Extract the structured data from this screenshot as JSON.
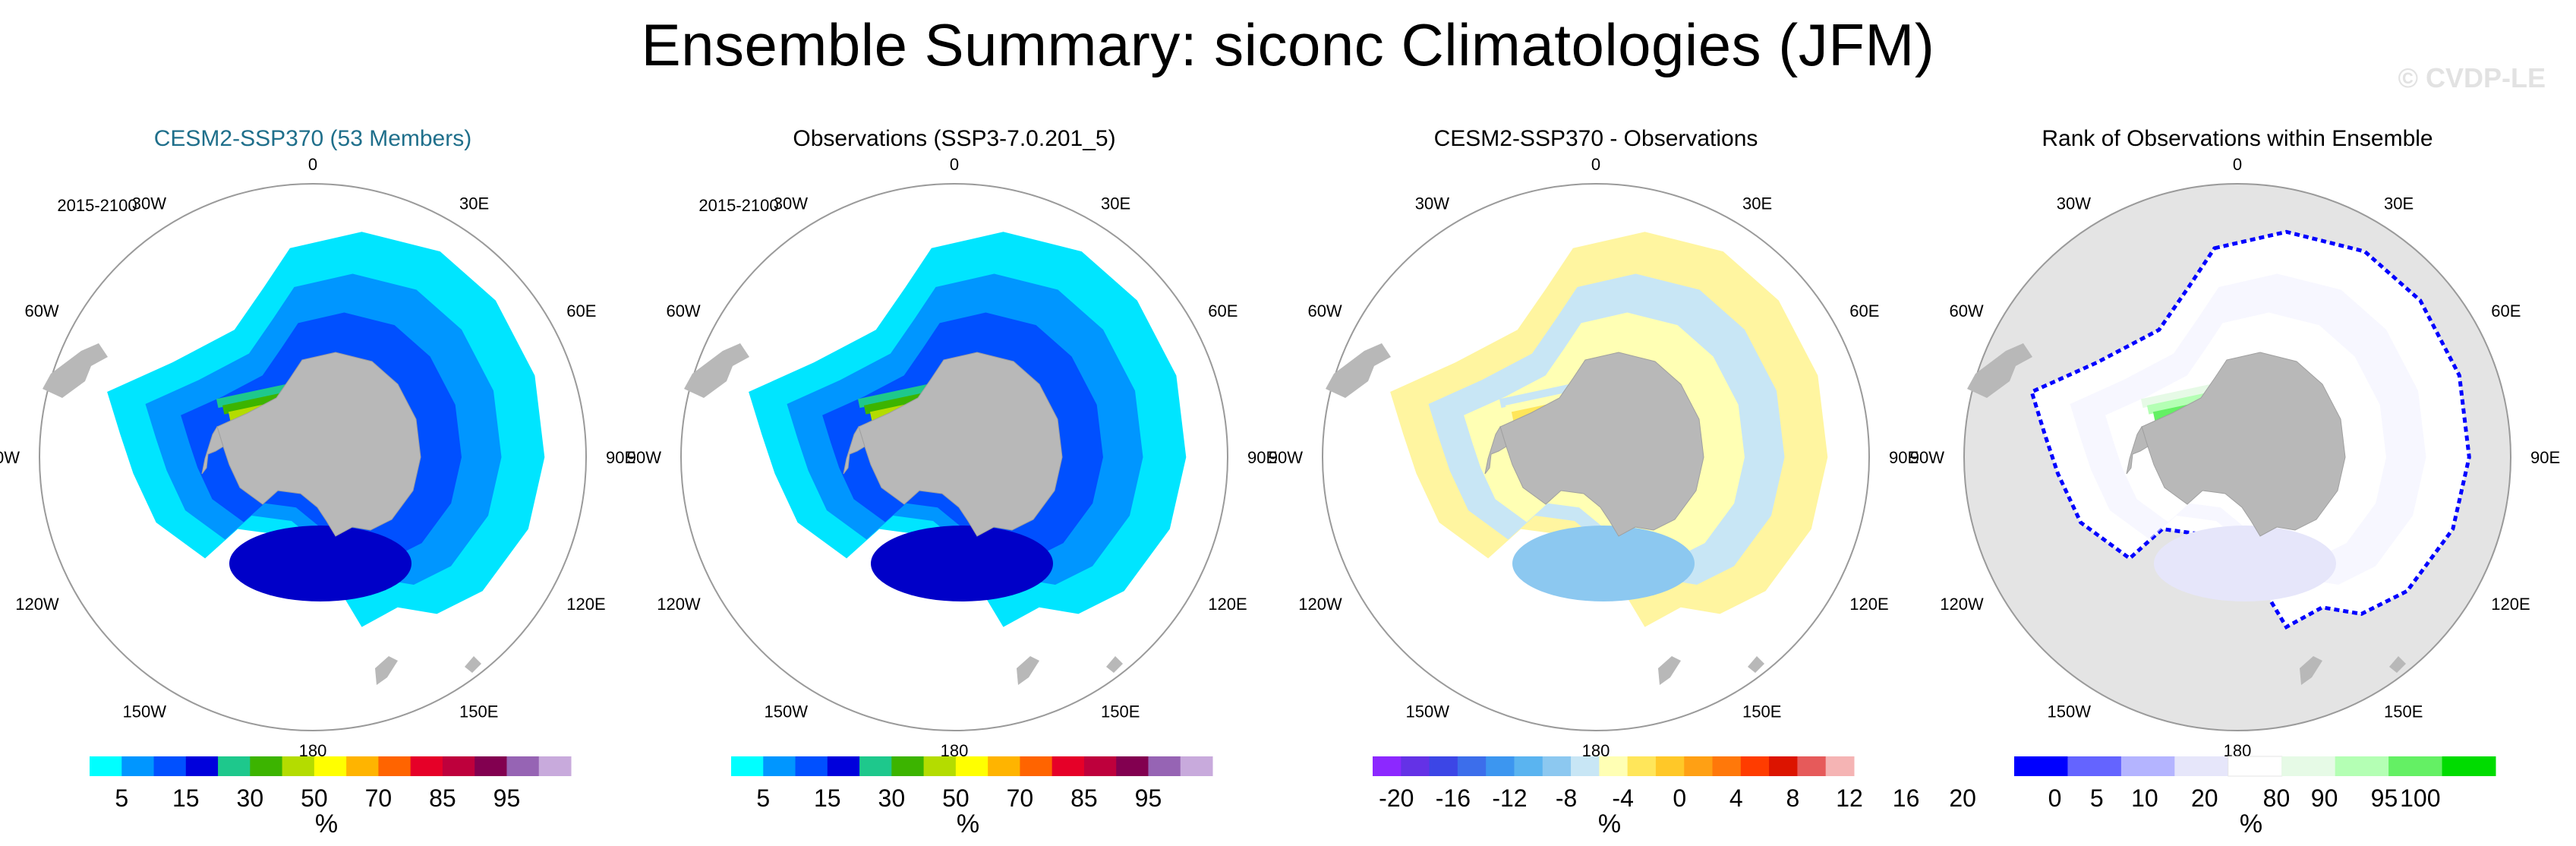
{
  "title": "Ensemble Summary: siconc Climatologies (JFM)",
  "watermark": "© CVDP-LE",
  "panels": [
    {
      "title": "CESM2-SSP370 (53 Members)",
      "title_color": "#1f6f8b",
      "period": "2015-2100",
      "kind": "model"
    },
    {
      "title": "Observations (SSP3-7.0.201_5)",
      "title_color": "#000000",
      "period": "2015-2100",
      "kind": "obs"
    },
    {
      "title": "CESM2-SSP370 - Observations",
      "title_color": "#000000",
      "period": "",
      "kind": "diff"
    },
    {
      "title": "Rank of Observations within Ensemble",
      "title_color": "#000000",
      "period": "",
      "kind": "rank"
    }
  ],
  "longitude_labels": [
    "0",
    "30E",
    "60E",
    "90E",
    "120E",
    "150E",
    "180",
    "150W",
    "120W",
    "90W",
    "60W",
    "30W"
  ],
  "chart_data": [
    {
      "type": "heatmap",
      "title": "CESM2-SSP370 (53 Members)",
      "variable": "siconc",
      "period": "2015-2100",
      "colorbar": {
        "unit": "%",
        "ticks": [
          "5",
          "15",
          "30",
          "50",
          "70",
          "85",
          "95"
        ],
        "colors": [
          "#00ffff",
          "#0096ff",
          "#0050ff",
          "#0000dc",
          "#1ec88c",
          "#3cb400",
          "#b4dc00",
          "#ffff00",
          "#ffb400",
          "#ff6400",
          "#e60028",
          "#be003c",
          "#820050",
          "#9664b4",
          "#c8aadc"
        ]
      }
    },
    {
      "type": "heatmap",
      "title": "Observations (SSP3-7.0.201_5)",
      "variable": "siconc",
      "period": "2015-2100",
      "colorbar": {
        "unit": "%",
        "ticks": [
          "5",
          "15",
          "30",
          "50",
          "70",
          "85",
          "95"
        ],
        "colors": [
          "#00ffff",
          "#0096ff",
          "#0050ff",
          "#0000dc",
          "#1ec88c",
          "#3cb400",
          "#b4dc00",
          "#ffff00",
          "#ffb400",
          "#ff6400",
          "#e60028",
          "#be003c",
          "#820050",
          "#9664b4",
          "#c8aadc"
        ]
      }
    },
    {
      "type": "heatmap",
      "title": "CESM2-SSP370 - Observations",
      "variable": "siconc difference",
      "colorbar": {
        "unit": "%",
        "ticks": [
          "-20",
          "-16",
          "-12",
          "-8",
          "-4",
          "0",
          "4",
          "8",
          "12",
          "16",
          "20"
        ],
        "colors": [
          "#8c28ff",
          "#6432e6",
          "#3c46e6",
          "#3c6eeb",
          "#3c96f0",
          "#5ab4f0",
          "#8cc8f0",
          "#c8e6f5",
          "#ffffb4",
          "#ffe65a",
          "#ffc828",
          "#ffa014",
          "#ff780a",
          "#ff3c00",
          "#dc1400",
          "#e65a5a",
          "#f5b4b4"
        ]
      }
    },
    {
      "type": "heatmap",
      "title": "Rank of Observations within Ensemble",
      "variable": "rank",
      "colorbar": {
        "unit": "%",
        "ticks": [
          "0",
          "5",
          "10",
          "20",
          "80",
          "90",
          "95",
          "100"
        ],
        "colors": [
          "#0000ff",
          "#6464ff",
          "#b4b4ff",
          "#e6e6fa",
          "#ffffff",
          "#e6fae6",
          "#b4ffb4",
          "#64f064",
          "#00dc00"
        ]
      }
    }
  ]
}
